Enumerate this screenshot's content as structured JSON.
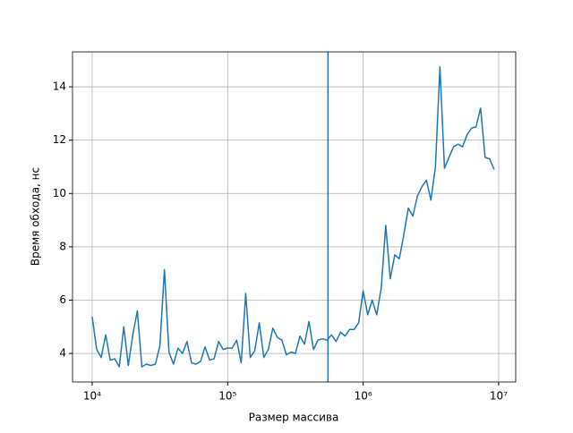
{
  "chart_data": {
    "type": "line",
    "xlabel": "Размер массива",
    "ylabel": "Время обхода, нс",
    "x": [
      10000,
      10798,
      11659,
      12589,
      13594,
      14678,
      15849,
      17113,
      18478,
      19953,
      21544,
      23263,
      25119,
      27123,
      29286,
      31623,
      34145,
      36869,
      39811,
      42987,
      46416,
      50119,
      54117,
      58434,
      63096,
      68129,
      73564,
      79433,
      85770,
      92611,
      100000,
      107978,
      116591,
      125893,
      135936,
      146780,
      158489,
      171133,
      184785,
      199526,
      215443,
      232631,
      251189,
      271227,
      292864,
      316228,
      341455,
      368695,
      398107,
      429866,
      464159,
      501187,
      541170,
      584341,
      630957,
      681292,
      735642,
      794328,
      857696,
      926119,
      1000000,
      1079775,
      1165914,
      1258925,
      1359356,
      1467799,
      1584893,
      1711328,
      1847850,
      1995262,
      2154435,
      2326305,
      2511886,
      2712273,
      2928645,
      3162278,
      3414549,
      3686945,
      3981072,
      4298662,
      4641589,
      5011872,
      5411695,
      5843414,
      6309573,
      6812921,
      7356423,
      7943282,
      8576959,
      9261187
    ],
    "values": [
      5.38,
      4.15,
      3.85,
      4.7,
      3.75,
      3.8,
      3.5,
      5.0,
      3.55,
      4.7,
      5.6,
      3.5,
      3.6,
      3.55,
      3.6,
      4.3,
      7.15,
      4.05,
      3.6,
      4.2,
      4.0,
      4.45,
      3.65,
      3.6,
      3.7,
      4.25,
      3.75,
      3.8,
      4.45,
      4.15,
      4.2,
      4.2,
      4.5,
      3.65,
      6.25,
      3.85,
      4.1,
      5.15,
      3.85,
      4.15,
      4.95,
      4.6,
      4.5,
      3.95,
      4.05,
      4.0,
      4.65,
      4.35,
      5.2,
      4.15,
      4.5,
      4.55,
      4.5,
      4.7,
      4.45,
      4.8,
      4.65,
      4.9,
      4.9,
      5.15,
      6.35,
      5.45,
      6.0,
      5.45,
      6.45,
      8.8,
      6.8,
      7.7,
      7.55,
      8.45,
      9.45,
      9.15,
      9.9,
      10.25,
      10.5,
      9.75,
      11.0,
      14.75,
      10.95,
      11.35,
      11.75,
      11.85,
      11.75,
      12.2,
      12.45,
      12.5,
      13.2,
      11.35,
      11.3,
      10.9
    ],
    "color": "#1f77b4",
    "vlines": [
      550000
    ],
    "xscale": "log",
    "xlim": [
      7161,
      13360000
    ],
    "xticks": [
      {
        "value": 10000,
        "label": "10⁴"
      },
      {
        "value": 100000,
        "label": "10⁵"
      },
      {
        "value": 1000000,
        "label": "10⁶"
      },
      {
        "value": 10000000,
        "label": "10⁷"
      }
    ],
    "ylim": [
      2.93,
      15.31
    ],
    "yticks": [
      4,
      6,
      8,
      10,
      12,
      14
    ],
    "grid": true
  }
}
